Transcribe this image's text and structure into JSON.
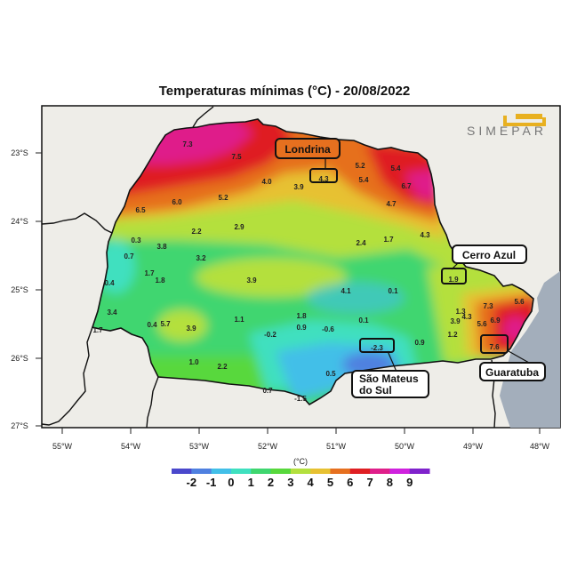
{
  "title": "Temperaturas mínimas (°C) - 20/08/2022",
  "logo_text": "SIMEPAR",
  "colors": {
    "frame_bg": "#eeede8",
    "ocean": "#a3aebb",
    "scale": [
      "#4a48cc",
      "#4f80e0",
      "#42bfe8",
      "#3fe0bf",
      "#3fd66f",
      "#58d83c",
      "#b4e03e",
      "#e7c132",
      "#e6701f",
      "#df1f23",
      "#df1f8a",
      "#cf22de",
      "#7f22cc"
    ]
  },
  "axes": {
    "lat_labels": [
      "23°S",
      "24°S",
      "25°S",
      "26°S",
      "27°S"
    ],
    "lon_labels": [
      "55°W",
      "54°W",
      "53°W",
      "52°W",
      "51°W",
      "50°W",
      "49°W",
      "48°W"
    ]
  },
  "colorbar": {
    "unit": "(°C)",
    "labels": [
      "-2",
      "-1",
      "0",
      "1",
      "2",
      "3",
      "4",
      "5",
      "6",
      "7",
      "8",
      "9"
    ]
  },
  "callouts": {
    "londrina": "Londrina",
    "cerro_azul": "Cerro Azul",
    "sao_mateus_1": "São Mateus",
    "sao_mateus_2": "do Sul",
    "guaratuba": "Guaratuba"
  },
  "station_values": [
    "7.3",
    "7.5",
    "6.0",
    "6.5",
    "5.2",
    "4.0",
    "3.9",
    "4.3",
    "5.2",
    "5.4",
    "5.4",
    "6.7",
    "4.7",
    "4.3",
    "2.9",
    "2.2",
    "0.3",
    "3.8",
    "0.7",
    "3.2",
    "2.4",
    "1.7",
    "1.7",
    "1.8",
    "0.4",
    "3.9",
    "4.1",
    "0.1",
    "1.9",
    "3.4",
    "0.4",
    "5.7",
    "3.9",
    "1.1",
    "1.8",
    "0.9",
    "-0.6",
    "-0.2",
    "0.1",
    "1.7",
    "1.0",
    "2.2",
    "0.7",
    "-1.5",
    "0.5",
    "-2.3",
    "0.9",
    "1.3",
    "4.3",
    "3.9",
    "1.2",
    "7.3",
    "5.6",
    "5.6",
    "6.9",
    "7.6"
  ]
}
